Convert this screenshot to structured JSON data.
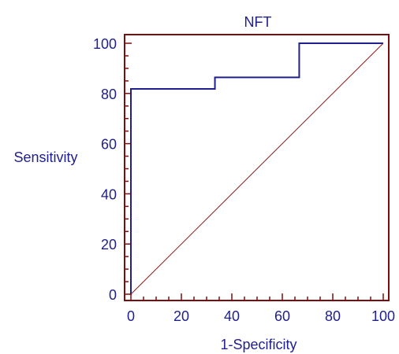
{
  "chart_data": {
    "type": "line",
    "title": "NFT",
    "xlabel": "1-Specificity",
    "ylabel": "Sensitivity",
    "xlim": [
      0,
      100
    ],
    "ylim": [
      0,
      100
    ],
    "xticks": [
      0,
      20,
      40,
      60,
      80,
      100
    ],
    "yticks": [
      0,
      20,
      40,
      60,
      80,
      100
    ],
    "grid": false,
    "series": [
      {
        "style": "step",
        "color": "#1f1f8f",
        "x": [
          0,
          0,
          33.3,
          33.3,
          66.7,
          66.7,
          100
        ],
        "y": [
          0,
          81.8,
          81.8,
          86.4,
          86.4,
          100,
          100
        ]
      },
      {
        "style": "reference-diagonal",
        "color": "#8b1a1a",
        "x": [
          0,
          100
        ],
        "y": [
          0,
          100
        ]
      }
    ],
    "frame_color": "#7a0f0f"
  }
}
